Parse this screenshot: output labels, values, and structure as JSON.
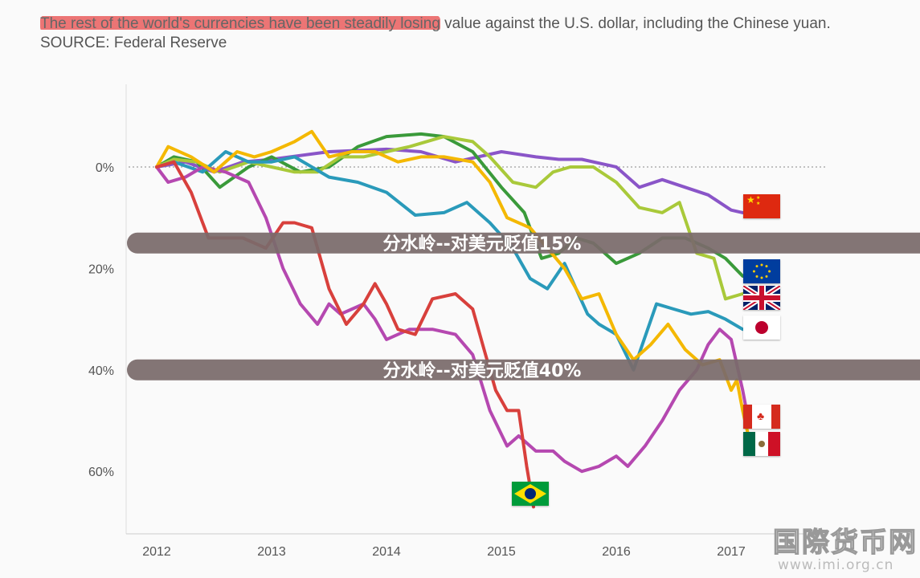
{
  "caption": {
    "highlighted": "The rest of the world's currencies have been steadily losing",
    "rest": " value against the U.S. dollar, including the Chinese yuan. SOURCE: Federal Reserve"
  },
  "colors": {
    "highlight": "#e84848",
    "band": "#7a6b6b",
    "band_text": "#ffffff"
  },
  "chart_data": {
    "type": "line",
    "xlabel": "",
    "ylabel": "",
    "x_ticks": [
      "2012",
      "2013",
      "2014",
      "2015",
      "2016",
      "2017"
    ],
    "y_ticks": [
      "0%",
      "20%",
      "40%",
      "60%"
    ],
    "y_tick_values": [
      0,
      20,
      40,
      60
    ],
    "y_inverted": true,
    "ylim": [
      -10,
      72
    ],
    "xlim": [
      2012,
      2017.5
    ],
    "zero_line": "dotted",
    "bands": [
      {
        "label": "分水岭--对美元贬值15%",
        "value": 15
      },
      {
        "label": "分水岭--对美元贬值40%",
        "value": 40
      }
    ],
    "series": [
      {
        "flag": "china-flag",
        "color": "#8a55c8",
        "points": [
          [
            2012,
            0
          ],
          [
            2012.25,
            -1
          ],
          [
            2012.5,
            1
          ],
          [
            2012.75,
            -1
          ],
          [
            2013,
            -1.5
          ],
          [
            2013.5,
            -3
          ],
          [
            2014,
            -3.5
          ],
          [
            2014.3,
            -3
          ],
          [
            2014.6,
            -1
          ],
          [
            2015,
            -3
          ],
          [
            2015.3,
            -2
          ],
          [
            2015.5,
            -1.5
          ],
          [
            2015.7,
            -1.5
          ],
          [
            2015.9,
            -0.5
          ],
          [
            2016,
            0
          ],
          [
            2016.2,
            4
          ],
          [
            2016.4,
            2.5
          ],
          [
            2016.6,
            4
          ],
          [
            2016.8,
            5.5
          ],
          [
            2017,
            8.5
          ],
          [
            2017.1,
            9
          ]
        ]
      },
      {
        "flag": "eu-flag",
        "color": "#3a9a3a",
        "points": [
          [
            2012,
            0
          ],
          [
            2012.15,
            -2
          ],
          [
            2012.35,
            -1
          ],
          [
            2012.55,
            4
          ],
          [
            2012.8,
            0
          ],
          [
            2013,
            -2
          ],
          [
            2013.25,
            1
          ],
          [
            2013.5,
            0
          ],
          [
            2013.75,
            -4
          ],
          [
            2014,
            -6
          ],
          [
            2014.3,
            -6.5
          ],
          [
            2014.5,
            -6
          ],
          [
            2014.75,
            -3
          ],
          [
            2015,
            4
          ],
          [
            2015.2,
            9
          ],
          [
            2015.35,
            18
          ],
          [
            2015.5,
            17
          ],
          [
            2015.65,
            14
          ],
          [
            2015.8,
            15
          ],
          [
            2016,
            19
          ],
          [
            2016.2,
            17
          ],
          [
            2016.4,
            14
          ],
          [
            2016.6,
            14
          ],
          [
            2016.8,
            16
          ],
          [
            2016.95,
            18
          ],
          [
            2017.1,
            21.5
          ]
        ]
      },
      {
        "flag": "uk-flag",
        "color": "#a9c93a",
        "points": [
          [
            2012,
            0
          ],
          [
            2012.15,
            -1.5
          ],
          [
            2012.35,
            -1
          ],
          [
            2012.55,
            1
          ],
          [
            2012.8,
            -1
          ],
          [
            2013,
            0
          ],
          [
            2013.2,
            1
          ],
          [
            2013.4,
            1
          ],
          [
            2013.6,
            -2
          ],
          [
            2013.8,
            -2
          ],
          [
            2014,
            -3
          ],
          [
            2014.2,
            -4
          ],
          [
            2014.5,
            -6
          ],
          [
            2014.75,
            -5
          ],
          [
            2014.9,
            -2
          ],
          [
            2015.1,
            3
          ],
          [
            2015.3,
            4
          ],
          [
            2015.45,
            1
          ],
          [
            2015.6,
            0
          ],
          [
            2015.8,
            0
          ],
          [
            2016,
            3
          ],
          [
            2016.2,
            8
          ],
          [
            2016.4,
            9
          ],
          [
            2016.55,
            7
          ],
          [
            2016.7,
            17
          ],
          [
            2016.85,
            18
          ],
          [
            2016.95,
            26
          ],
          [
            2017.1,
            25
          ]
        ]
      },
      {
        "flag": "japan-flag",
        "color": "#2a9aba",
        "points": [
          [
            2012,
            0
          ],
          [
            2012.15,
            -1
          ],
          [
            2012.4,
            1
          ],
          [
            2012.6,
            -3
          ],
          [
            2012.8,
            -1
          ],
          [
            2013,
            -1
          ],
          [
            2013.2,
            -2
          ],
          [
            2013.5,
            2
          ],
          [
            2013.75,
            3
          ],
          [
            2014,
            5
          ],
          [
            2014.25,
            9.5
          ],
          [
            2014.5,
            9
          ],
          [
            2014.7,
            7
          ],
          [
            2014.9,
            11
          ],
          [
            2015.1,
            16
          ],
          [
            2015.25,
            22
          ],
          [
            2015.4,
            24
          ],
          [
            2015.55,
            19
          ],
          [
            2015.75,
            29
          ],
          [
            2015.85,
            31
          ],
          [
            2016,
            33
          ],
          [
            2016.15,
            40
          ],
          [
            2016.35,
            27
          ],
          [
            2016.5,
            28
          ],
          [
            2016.65,
            29
          ],
          [
            2016.8,
            28.5
          ],
          [
            2016.95,
            30
          ],
          [
            2017.1,
            32
          ]
        ]
      },
      {
        "flag": "canada-flag",
        "color": "#b548b0",
        "points": [
          [
            2012,
            0
          ],
          [
            2012.1,
            3
          ],
          [
            2012.25,
            2
          ],
          [
            2012.4,
            0
          ],
          [
            2012.6,
            1
          ],
          [
            2012.8,
            3
          ],
          [
            2012.95,
            10
          ],
          [
            2013.1,
            20
          ],
          [
            2013.25,
            27
          ],
          [
            2013.4,
            31
          ],
          [
            2013.5,
            27
          ],
          [
            2013.6,
            29
          ],
          [
            2013.7,
            28
          ],
          [
            2013.8,
            27
          ],
          [
            2013.9,
            30
          ],
          [
            2014,
            34
          ],
          [
            2014.2,
            32
          ],
          [
            2014.4,
            32
          ],
          [
            2014.6,
            33
          ],
          [
            2014.75,
            37
          ],
          [
            2014.9,
            48
          ],
          [
            2015.05,
            55
          ],
          [
            2015.15,
            53
          ],
          [
            2015.3,
            56
          ],
          [
            2015.45,
            56
          ],
          [
            2015.55,
            58
          ],
          [
            2015.7,
            60
          ],
          [
            2015.85,
            59
          ],
          [
            2016,
            57
          ],
          [
            2016.1,
            59
          ],
          [
            2016.25,
            55
          ],
          [
            2016.4,
            50
          ],
          [
            2016.55,
            44
          ],
          [
            2016.7,
            40
          ],
          [
            2016.8,
            35
          ],
          [
            2016.9,
            32
          ],
          [
            2017,
            34
          ],
          [
            2017.1,
            44
          ],
          [
            2017.15,
            50
          ]
        ]
      },
      {
        "flag": "mexico-flag",
        "color": "#f4b800",
        "points": [
          [
            2012,
            0
          ],
          [
            2012.1,
            -4
          ],
          [
            2012.3,
            -2
          ],
          [
            2012.5,
            1
          ],
          [
            2012.7,
            -3
          ],
          [
            2012.85,
            -2
          ],
          [
            2013,
            -3
          ],
          [
            2013.2,
            -5
          ],
          [
            2013.35,
            -7
          ],
          [
            2013.5,
            -2
          ],
          [
            2013.7,
            -3
          ],
          [
            2013.9,
            -3
          ],
          [
            2014.1,
            -1
          ],
          [
            2014.3,
            -2
          ],
          [
            2014.5,
            -2
          ],
          [
            2014.75,
            -1
          ],
          [
            2014.9,
            3
          ],
          [
            2015.05,
            10
          ],
          [
            2015.25,
            12
          ],
          [
            2015.4,
            16
          ],
          [
            2015.55,
            20
          ],
          [
            2015.7,
            26
          ],
          [
            2015.85,
            25
          ],
          [
            2016,
            33
          ],
          [
            2016.15,
            38
          ],
          [
            2016.3,
            35
          ],
          [
            2016.45,
            31
          ],
          [
            2016.6,
            36
          ],
          [
            2016.75,
            39
          ],
          [
            2016.9,
            38
          ],
          [
            2017,
            44
          ],
          [
            2017.05,
            42
          ],
          [
            2017.1,
            48
          ],
          [
            2017.15,
            53
          ]
        ]
      },
      {
        "flag": "brazil-flag",
        "color": "#d8403c",
        "points": [
          [
            2012,
            0
          ],
          [
            2012.15,
            -1
          ],
          [
            2012.3,
            5
          ],
          [
            2012.45,
            14
          ],
          [
            2012.6,
            14
          ],
          [
            2012.75,
            14
          ],
          [
            2012.95,
            16
          ],
          [
            2013.1,
            11
          ],
          [
            2013.2,
            11
          ],
          [
            2013.35,
            12
          ],
          [
            2013.5,
            24
          ],
          [
            2013.65,
            31
          ],
          [
            2013.8,
            27
          ],
          [
            2013.9,
            23
          ],
          [
            2014,
            27
          ],
          [
            2014.1,
            32
          ],
          [
            2014.25,
            33
          ],
          [
            2014.4,
            26
          ],
          [
            2014.6,
            25
          ],
          [
            2014.75,
            28
          ],
          [
            2014.85,
            36
          ],
          [
            2014.95,
            44
          ],
          [
            2015.05,
            48
          ],
          [
            2015.15,
            48
          ],
          [
            2015.22,
            59
          ],
          [
            2015.28,
            67
          ]
        ]
      }
    ]
  },
  "watermark": {
    "text": "国際货币网",
    "url": "www.imi.org.cn"
  }
}
